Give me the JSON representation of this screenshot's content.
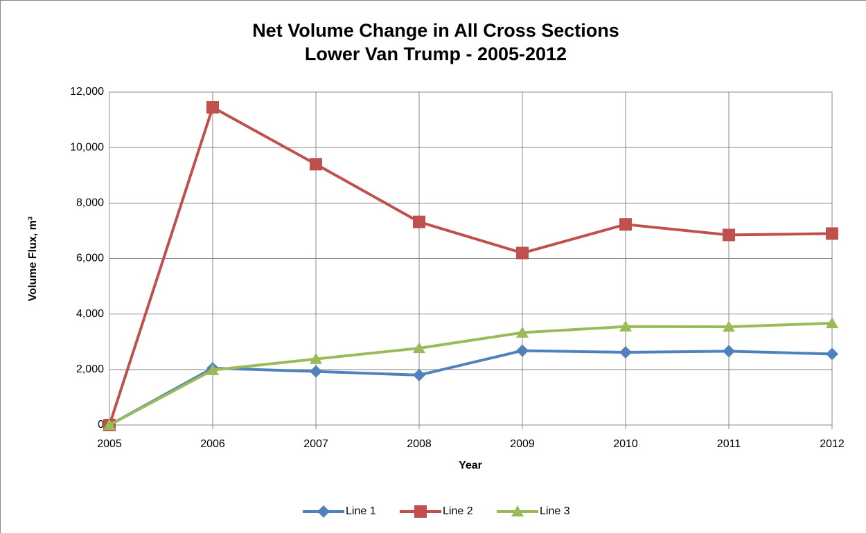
{
  "chart_data": {
    "type": "line",
    "title": [
      "Net Volume Change in All Cross Sections",
      "Lower Van Trump - 2005-2012"
    ],
    "x_label": "Year",
    "y_label": "Volume Flux, m³",
    "x": [
      2005,
      2006,
      2007,
      2008,
      2009,
      2010,
      2011,
      2012
    ],
    "xlim": [
      2005,
      2012
    ],
    "xticks": [
      2005,
      2006,
      2007,
      2008,
      2009,
      2010,
      2011,
      2012
    ],
    "ylim": [
      0,
      12000
    ],
    "yticks": [
      0,
      {
        "value": 2000,
        "label": "2,000"
      },
      {
        "value": 4000,
        "label": "4,000"
      },
      {
        "value": 6000,
        "label": "6,000"
      },
      {
        "value": 8000,
        "label": "8,000"
      },
      {
        "value": 10000,
        "label": "10,000"
      },
      {
        "value": 12000,
        "label": "12,000"
      }
    ],
    "grid": true,
    "legend": "bottom",
    "series": [
      {
        "name": "Line 1",
        "color": "#4f81bd",
        "marker": "diamond",
        "values": [
          0,
          2050,
          1930,
          1800,
          2680,
          2620,
          2660,
          2560
        ]
      },
      {
        "name": "Line 2",
        "color": "#c0504d",
        "marker": "square",
        "values": [
          0,
          11450,
          9400,
          7320,
          6200,
          7230,
          6850,
          6900
        ]
      },
      {
        "name": "Line 3",
        "color": "#9bbb59",
        "marker": "triangle",
        "values": [
          0,
          1980,
          2380,
          2770,
          3330,
          3550,
          3540,
          3670
        ]
      }
    ]
  }
}
